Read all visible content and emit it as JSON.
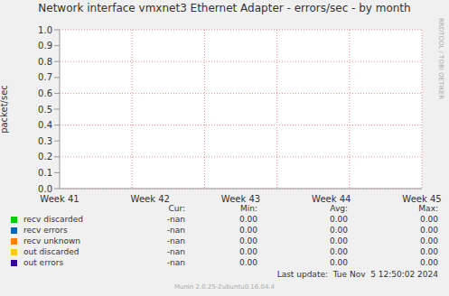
{
  "chart_data": {
    "type": "line",
    "title": "Network interface vmxnet3 Ethernet Adapter - errors/sec - by month",
    "y_label": "packet/sec",
    "categories": [
      "Week 41",
      "Week 42",
      "Week 43",
      "Week 44",
      "Week 45"
    ],
    "series": [
      {
        "name": "recv discarded",
        "color": "#00cc00",
        "values": [
          null,
          null,
          null,
          null,
          null
        ],
        "cur": "-nan",
        "min": "0.00",
        "avg": "0.00",
        "max": "0.00"
      },
      {
        "name": "recv errors",
        "color": "#0066b3",
        "values": [
          null,
          null,
          null,
          null,
          null
        ],
        "cur": "-nan",
        "min": "0.00",
        "avg": "0.00",
        "max": "0.00"
      },
      {
        "name": "recv unknown",
        "color": "#ff8000",
        "values": [
          null,
          null,
          null,
          null,
          null
        ],
        "cur": "-nan",
        "min": "0.00",
        "avg": "0.00",
        "max": "0.00"
      },
      {
        "name": "out discarded",
        "color": "#ffcc00",
        "values": [
          null,
          null,
          null,
          null,
          null
        ],
        "cur": "-nan",
        "min": "0.00",
        "avg": "0.00",
        "max": "0.00"
      },
      {
        "name": "out errors",
        "color": "#330099",
        "values": [
          null,
          null,
          null,
          null,
          null
        ],
        "cur": "-nan",
        "min": "0.00",
        "avg": "0.00",
        "max": "0.00"
      }
    ],
    "ylim": [
      0,
      1
    ],
    "yticks": [
      {
        "value": 0,
        "label": "0.0"
      },
      {
        "value": 0.1,
        "label": "0.1"
      },
      {
        "value": 0.2,
        "label": "0.2"
      },
      {
        "value": 0.3,
        "label": "0.3"
      },
      {
        "value": 0.4,
        "label": "0.4"
      },
      {
        "value": 0.5,
        "label": "0.5"
      },
      {
        "value": 0.6,
        "label": "0.6"
      },
      {
        "value": 0.7,
        "label": "0.7"
      },
      {
        "value": 0.8,
        "label": "0.8"
      },
      {
        "value": 0.9,
        "label": "0.9"
      },
      {
        "value": 1,
        "label": "1.0"
      }
    ],
    "grid": true,
    "legend": "bottom",
    "legend_headers": [
      "Cur:",
      "Min:",
      "Avg:",
      "Max:"
    ],
    "last_update": "Last update:  Tue Nov  5 12:50:02 2024",
    "footer": "Munin 2.0.25-2ubuntu0.16.04.4",
    "watermark": "RRDTOOL / TOBI OETIKER"
  }
}
